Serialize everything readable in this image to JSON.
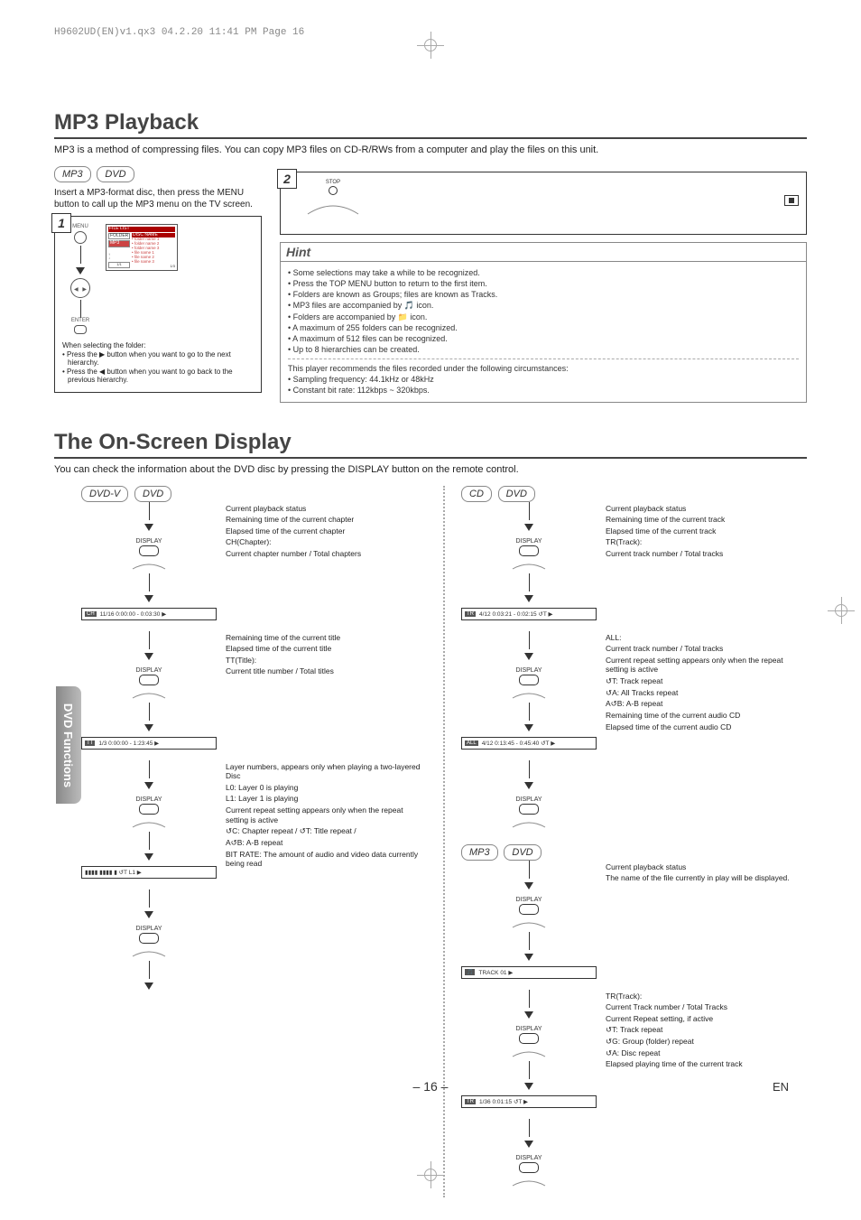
{
  "header": "H9602UD(EN)v1.qx3  04.2.20  11:41 PM  Page 16",
  "section1": {
    "title": "MP3 Playback",
    "intro": "MP3 is a method of compressing files. You can copy MP3 files on CD-R/RWs from a computer and play the files on this unit.",
    "badge_mp3": "MP3",
    "badge_dvd": "DVD",
    "insert_text": "Insert a MP3-format disc, then press the MENU button to call up the MP3 menu on the TV screen.",
    "step1": "1",
    "step2": "2",
    "menu_label": "MENU",
    "enter_label": "ENTER",
    "stop_label": "STOP",
    "file_list": "FILE LIST",
    "disc_name": "DISC NAME",
    "folder_label": "FOLDER",
    "mp3_label": "MP3",
    "folder_items": [
      "folder name 1",
      "folder name 2",
      "folder name 3",
      "file name 1",
      "file name 2",
      "file name 3"
    ],
    "page_ind_left": "1/1",
    "page_ind_right": "1/3",
    "when_selecting": "When selecting the folder:",
    "press_right": "Press the ▶ button when you want to go to the next hierarchy.",
    "press_left": "Press the ◀ button when you want to go back to the previous hierarchy.",
    "hint_title": "Hint",
    "hints": [
      "Some selections may take a while to be recognized.",
      "Press the TOP MENU button to return to the first item.",
      "Folders are known as Groups; files are known as Tracks.",
      "MP3 files are accompanied by 🎵 icon.",
      "Folders are accompanied by 📁 icon.",
      "A maximum of 255 folders can be recognized.",
      "A maximum of 512 files can be recognized.",
      "Up to 8 hierarchies can be created."
    ],
    "hint_tail": [
      "This player recommends the files recorded under the following circumstances:",
      "Sampling frequency: 44.1kHz or 48kHz",
      "Constant bit rate: 112kbps ~ 320kbps."
    ]
  },
  "section2": {
    "title": "The On-Screen Display",
    "intro": "You can check the information about the DVD disc by pressing the DISPLAY button on the remote control.",
    "display_label": "DISPLAY",
    "dvd_v_badge": "DVD-V",
    "cd_badge": "CD",
    "mp3_badge": "MP3",
    "dvd_bars": [
      {
        "tag": "CH",
        "text": "11/16  0:00:00 - 0:03:30   ▶"
      },
      {
        "tag": "TT",
        "text": "1/3  0:00:00 - 1:23:45   ▶"
      },
      {
        "tag": "",
        "text": "▮▮▮▮ ▮▮▮▮ ▮   ↺T  L1   ▶"
      }
    ],
    "dvd_callouts_1": [
      "Current playback status",
      "Remaining time of the current chapter",
      "Elapsed time of the current chapter",
      "CH(Chapter):",
      "Current chapter number / Total chapters"
    ],
    "dvd_callouts_2": [
      "Remaining time of the current title",
      "Elapsed time of the current title",
      "TT(Title):",
      "Current title number / Total titles"
    ],
    "dvd_callouts_3": [
      "Layer numbers, appears only when playing a two-layered Disc",
      "L0: Layer 0 is playing",
      "L1: Layer 1 is playing",
      "Current repeat setting appears only when the repeat setting is active",
      "↺C: Chapter repeat / ↺T: Title repeat /",
      "A↺B: A-B repeat",
      "BIT RATE: The amount of audio and video data currently being read"
    ],
    "cd_bars": [
      {
        "tag": "TR",
        "text": "4/12  0:03:21 - 0:02:15  ↺T  ▶"
      },
      {
        "tag": "ALL",
        "text": "4/12  0:13:45 - 0:45:40  ↺T  ▶"
      }
    ],
    "cd_callouts_1": [
      "Current playback status",
      "Remaining time of the current track",
      "Elapsed time of the current track",
      "TR(Track):",
      "Current track number / Total tracks"
    ],
    "cd_callouts_2": [
      "ALL:",
      "Current track number / Total tracks",
      "Current repeat setting appears only when the repeat setting is active",
      "↺T: Track repeat",
      "↺A: All Tracks repeat",
      "A↺B: A-B repeat",
      "Remaining time of the current audio CD",
      "Elapsed time of the current audio CD"
    ],
    "mp3_bars": [
      {
        "tag": "🎵",
        "text": "TRACK 01                      ▶"
      },
      {
        "tag": "TR",
        "text": "1/36  0:01:15        ↺T   ▶"
      }
    ],
    "mp3_callouts_1": [
      "Current playback status",
      "The name of the file currently in play will be displayed."
    ],
    "mp3_callouts_2": [
      "TR(Track):",
      "Current Track number / Total Tracks",
      "Current Repeat setting, if active",
      "↺T: Track repeat",
      "↺G: Group (folder) repeat",
      "↺A: Disc repeat",
      "Elapsed playing time of the current track"
    ]
  },
  "side_tab": "DVD Functions",
  "page_number": "16",
  "lang": "EN"
}
